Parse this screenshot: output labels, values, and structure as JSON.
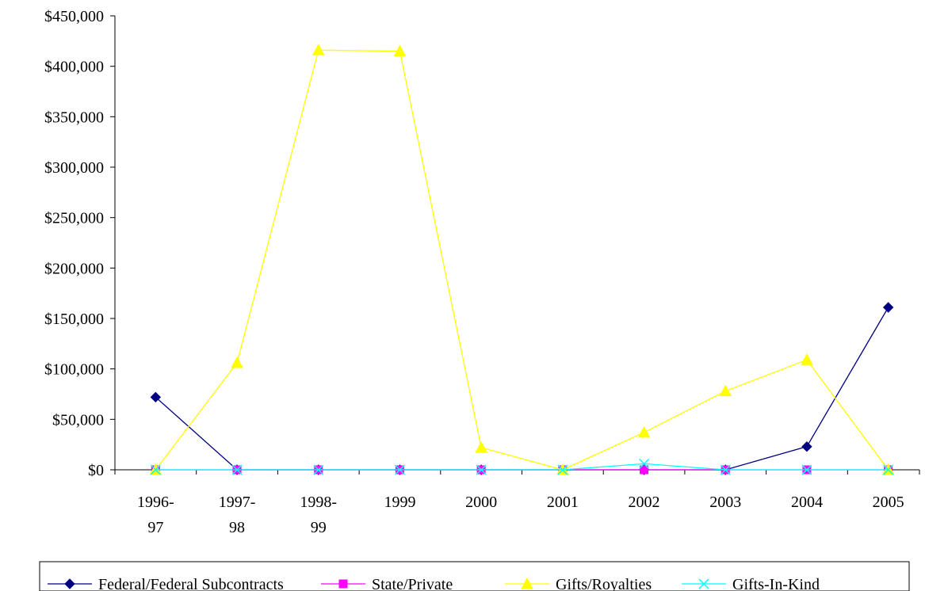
{
  "chart_data": {
    "type": "line",
    "title": "",
    "xlabel": "",
    "ylabel": "",
    "categories": [
      "1996-\n97",
      "1997-\n98",
      "1998-\n99",
      "1999",
      "2000",
      "2001",
      "2002",
      "2003",
      "2004",
      "2005"
    ],
    "y_tick_labels": [
      "$0",
      "$50,000",
      "$100,000",
      "$150,000",
      "$200,000",
      "$250,000",
      "$300,000",
      "$350,000",
      "$400,000",
      "$450,000"
    ],
    "ylim": [
      0,
      450000
    ],
    "y_tick_step": 50000,
    "grid": false,
    "legend_position": "bottom",
    "series": [
      {
        "name": "Federal/Federal Subcontracts",
        "color": "#000080",
        "marker": "diamond",
        "values": [
          72000,
          0,
          0,
          0,
          0,
          0,
          0,
          0,
          23000,
          161000
        ]
      },
      {
        "name": "State/Private",
        "color": "#FF00FF",
        "marker": "square",
        "values": [
          0,
          0,
          0,
          0,
          0,
          0,
          0,
          0,
          0,
          0
        ]
      },
      {
        "name": "Gifts/Royalties",
        "color": "#FFFF00",
        "marker": "triangle",
        "values": [
          0,
          106000,
          416000,
          415000,
          22000,
          0,
          37000,
          78000,
          109000,
          0
        ]
      },
      {
        "name": "Gifts-In-Kind",
        "color": "#00FFFF",
        "marker": "x",
        "values": [
          0,
          0,
          0,
          0,
          0,
          0,
          6000,
          0,
          0,
          0
        ]
      }
    ]
  }
}
